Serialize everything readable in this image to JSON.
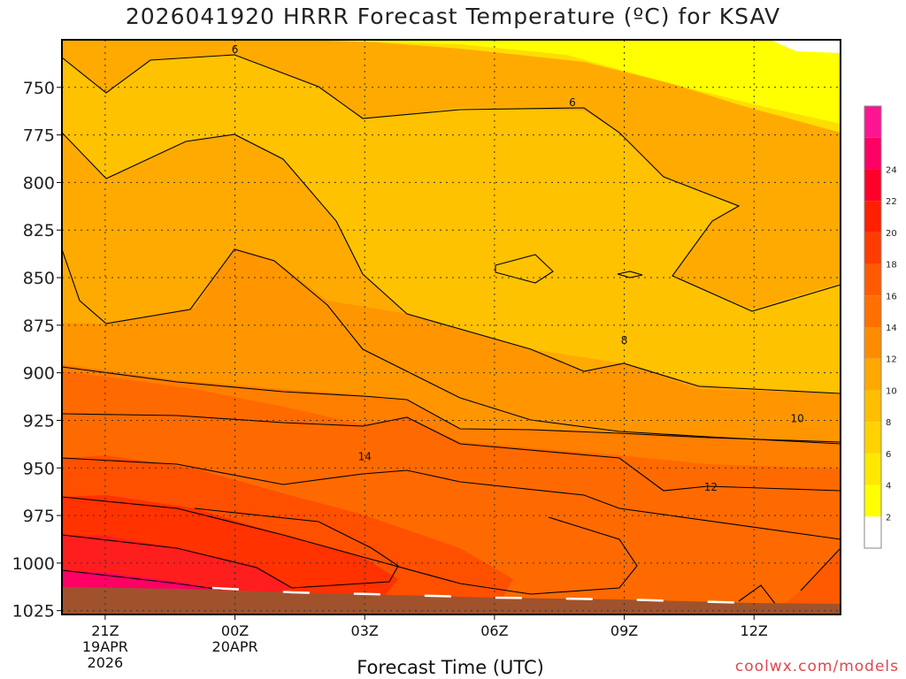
{
  "title": "2026041920 HRRR Forecast Temperature (ºC) for KSAV",
  "xlabel": "Forecast Time (UTC)",
  "watermark": "coolwx.com/models",
  "chart_data": {
    "type": "heatmap",
    "title": "2026041920 HRRR Forecast Temperature (ºC) for KSAV",
    "xlabel": "Forecast Time (UTC)",
    "ylabel": "",
    "x_ticks": [
      {
        "label": "21Z",
        "sub": [
          "19APR",
          "2026"
        ],
        "hour": 1
      },
      {
        "label": "00Z",
        "sub": [
          "20APR"
        ],
        "hour": 4
      },
      {
        "label": "03Z",
        "sub": [],
        "hour": 7
      },
      {
        "label": "06Z",
        "sub": [],
        "hour": 10
      },
      {
        "label": "09Z",
        "sub": [],
        "hour": 13
      },
      {
        "label": "12Z",
        "sub": [],
        "hour": 16
      }
    ],
    "xlim": [
      0,
      18
    ],
    "y_ticks": [
      750,
      775,
      800,
      825,
      850,
      875,
      900,
      925,
      950,
      975,
      1000,
      1025
    ],
    "ylim_hpa": [
      725,
      1027
    ],
    "colorbar": {
      "labels": [
        2,
        4,
        6,
        8,
        10,
        12,
        14,
        16,
        18,
        20,
        22,
        24
      ],
      "colors": [
        "#ffffff",
        "#ffff00",
        "#ffe800",
        "#ffd200",
        "#ffbe00",
        "#ffa800",
        "#ff8c00",
        "#ff7000",
        "#ff5a00",
        "#ff3c00",
        "#ff2000",
        "#ff0028",
        "#ff0064",
        "#ff1493"
      ]
    },
    "contour_labels": [
      {
        "text": "6",
        "x": 4,
        "p": 730
      },
      {
        "text": "6",
        "x": 11.8,
        "p": 758
      },
      {
        "text": "8",
        "x": 13,
        "p": 883
      },
      {
        "text": "10",
        "x": 17,
        "p": 924
      },
      {
        "text": "12",
        "x": 15,
        "p": 960
      },
      {
        "text": "14",
        "x": 7,
        "p": 944
      }
    ],
    "grid": true,
    "surface_color": "#a0522d"
  }
}
